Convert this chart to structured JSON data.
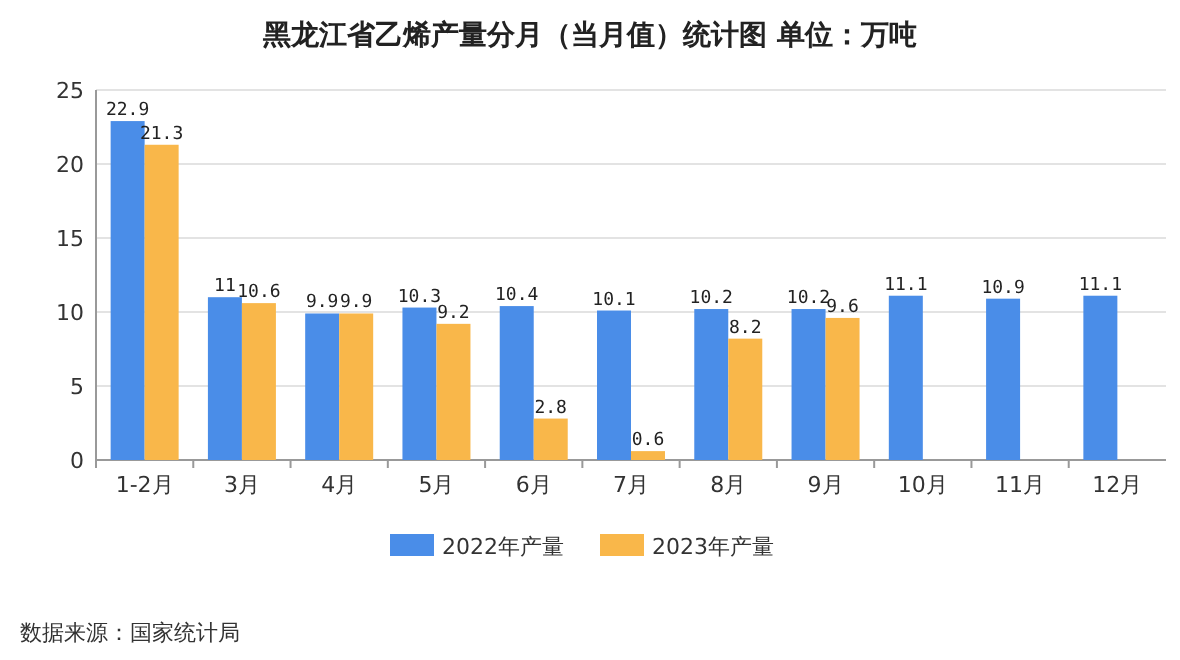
{
  "chart_data": {
    "type": "bar",
    "title": "黑龙江省乙烯产量分月（当月值）统计图 单位：万吨",
    "categories": [
      "1-2月",
      "3月",
      "4月",
      "5月",
      "6月",
      "7月",
      "8月",
      "9月",
      "10月",
      "11月",
      "12月"
    ],
    "series": [
      {
        "name": "2022年产量",
        "color": "#4a8de8",
        "values": [
          22.9,
          11,
          9.9,
          10.3,
          10.4,
          10.1,
          10.2,
          10.2,
          11.1,
          10.9,
          11.1
        ]
      },
      {
        "name": "2023年产量",
        "color": "#f9b74a",
        "values": [
          21.3,
          10.6,
          9.9,
          9.2,
          2.8,
          0.6,
          8.2,
          9.6,
          null,
          null,
          null
        ]
      }
    ],
    "ylim": [
      0,
      25
    ],
    "yticks": [
      0,
      5,
      10,
      15,
      20,
      25
    ],
    "grid": "y",
    "legend": "bottom",
    "data_labels": true,
    "annotations": [
      "数据来源：国家统计局"
    ]
  }
}
